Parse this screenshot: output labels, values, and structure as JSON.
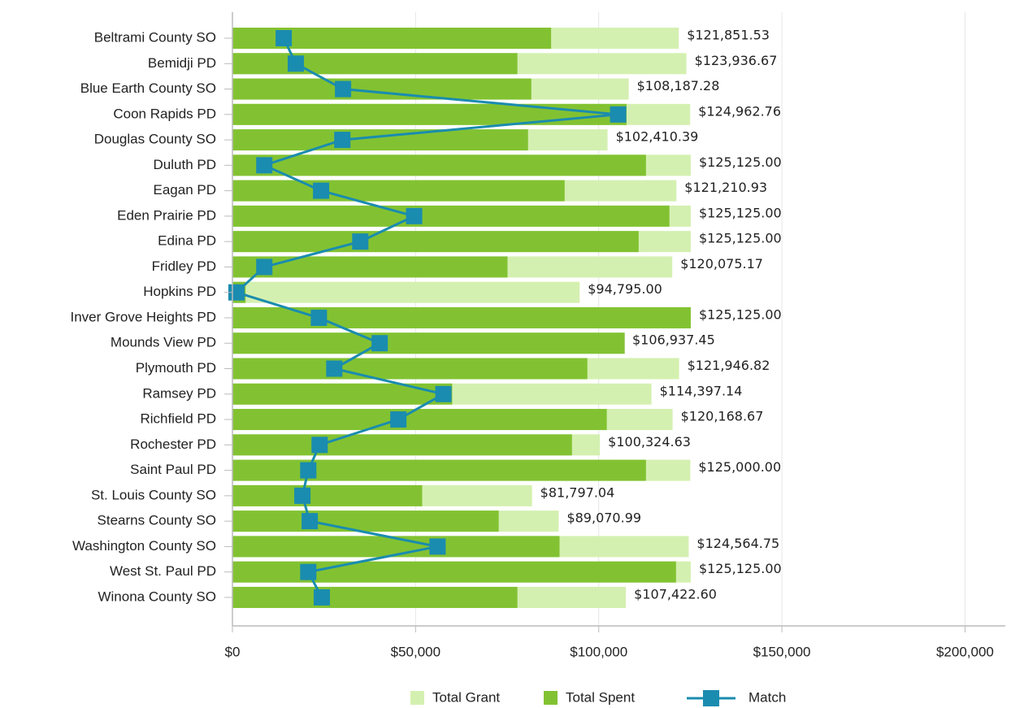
{
  "chart_data": {
    "type": "bar",
    "orientation": "horizontal",
    "categories": [
      "Beltrami County SO",
      "Bemidji PD",
      "Blue Earth County SO",
      "Coon Rapids PD",
      "Douglas County SO",
      "Duluth PD",
      "Eagan PD",
      "Eden Prairie PD",
      "Edina PD",
      "Fridley PD",
      "Hopkins PD",
      "Inver Grove Heights PD",
      "Mounds View PD",
      "Plymouth PD",
      "Ramsey PD",
      "Richfield PD",
      "Rochester PD",
      "Saint Paul PD",
      "St. Louis County SO",
      "Stearns County SO",
      "Washington County SO",
      "West St. Paul PD",
      "Winona County SO"
    ],
    "series": [
      {
        "name": "Total Grant",
        "type": "bar",
        "color": "#d4f0b0",
        "values": [
          121851.53,
          123936.67,
          108187.28,
          124962.76,
          102410.39,
          125125.0,
          121210.93,
          125125.0,
          125125.0,
          120075.17,
          94795.0,
          125125.0,
          106937.45,
          121946.82,
          114397.14,
          120168.67,
          100324.63,
          125000.0,
          81797.04,
          89070.99,
          124564.75,
          125125.0,
          107422.6
        ],
        "value_labels": [
          "$121,851.53",
          "$123,936.67",
          "$108,187.28",
          "$124,962.76",
          "$102,410.39",
          "$125,125.00",
          "$121,210.93",
          "$125,125.00",
          "$125,125.00",
          "$120,075.17",
          "$94,795.00",
          "$125,125.00",
          "$106,937.45",
          "$121,946.82",
          "$114,397.14",
          "$120,168.67",
          "$100,324.63",
          "$125,000.00",
          "$81,797.04",
          "$89,070.99",
          "$124,564.75",
          "$125,125.00",
          "$107,422.60"
        ]
      },
      {
        "name": "Total Spent",
        "type": "bar",
        "color": "#82c232",
        "values": [
          87000,
          77800,
          81600,
          107600,
          80700,
          112900,
          90700,
          119300,
          110900,
          75100,
          3600,
          125125,
          107100,
          96900,
          60000,
          102200,
          92700,
          112900,
          51800,
          72700,
          89300,
          121100,
          77800
        ]
      },
      {
        "name": "Match",
        "type": "line",
        "color": "#1a8caf",
        "values": [
          14000,
          17300,
          30200,
          105300,
          30000,
          8700,
          24200,
          49600,
          34900,
          8700,
          1100,
          23600,
          40200,
          27800,
          57600,
          45300,
          23800,
          20700,
          19100,
          21100,
          56000,
          20700,
          24400
        ]
      }
    ],
    "xlim": [
      0,
      211000
    ],
    "xticks": [
      {
        "value": 0,
        "label": "$0"
      },
      {
        "value": 50000,
        "label": "$50,000"
      },
      {
        "value": 100000,
        "label": "$100,000"
      },
      {
        "value": 150000,
        "label": "$150,000"
      },
      {
        "value": 200000,
        "label": "$200,000"
      }
    ],
    "grid": true,
    "legend": "bottom"
  }
}
